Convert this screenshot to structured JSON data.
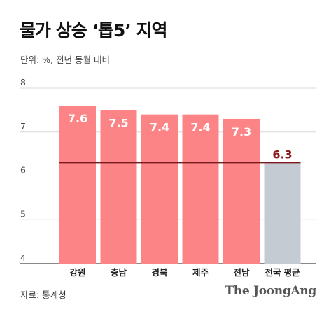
{
  "title": "물가 상승 ‘톱5’ 지역",
  "unit_note": "단위: %, 전년 동월 대비",
  "source": "자료: 통계청",
  "brand": "The JoongAng",
  "colors": {
    "highlight_bar": "#fc8487",
    "average_bar": "#c5cbd3",
    "highlight_label": "#ffffff",
    "average_label": "#8b1a1f",
    "average_line": "#7a1a1f",
    "grid": "#d8d8d8",
    "axis": "#444444"
  },
  "chart_data": {
    "type": "bar",
    "title": "물가 상승 ‘톱5’ 지역",
    "ylabel": "단위: %, 전년 동월 대비",
    "ylim": [
      4,
      8
    ],
    "yticks": [
      4,
      5,
      6,
      7,
      8
    ],
    "grid": true,
    "categories": [
      "강원",
      "충남",
      "경북",
      "제주",
      "전남",
      "전국 평균"
    ],
    "values": [
      7.6,
      7.5,
      7.4,
      7.4,
      7.3,
      6.3
    ],
    "value_labels": [
      "7.6",
      "7.5",
      "7.4",
      "7.4",
      "7.3",
      "6.3"
    ],
    "reference_line": 6.3
  }
}
